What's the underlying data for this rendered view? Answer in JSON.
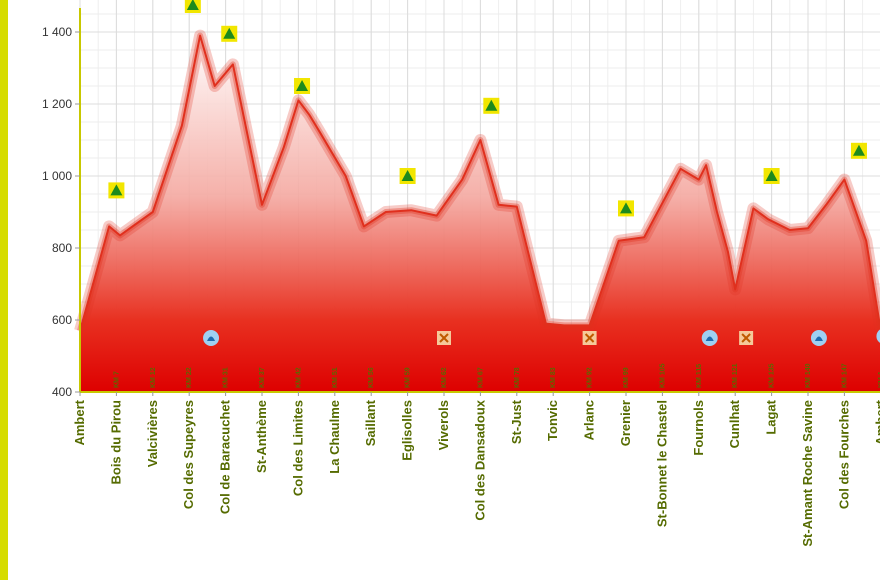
{
  "colors": {
    "accent_stripe": "#d6dc00",
    "axis": "#c8c800",
    "line": "#e0301e",
    "fill_top": "#ffffff",
    "fill_bottom": "#e00000",
    "category_label": "#556b00",
    "summit_icon_bg": "#f2e600",
    "summit_icon": "#1d8a1d",
    "water_icon_bg": "#9fd0f2",
    "water_icon": "#1e6bb0",
    "cross_icon_bg": "#f5c99a",
    "cross_icon": "#c05a00"
  },
  "chart_data": {
    "type": "area",
    "title": "",
    "xlabel": "",
    "ylabel": "",
    "ylim": [
      400,
      1500
    ],
    "yticks": [
      400,
      600,
      800,
      1000,
      1200,
      1400
    ],
    "ytick_labels": [
      "400",
      "600",
      "800",
      "1 000",
      "1 200",
      "1 400"
    ],
    "grid": true,
    "categories": [
      "Ambert",
      "Bois du Pirou",
      "Valcivières",
      "Col des Supeyres",
      "Col de Baracuchet",
      "St-Anthème",
      "Col des Limites",
      "La Chaulme",
      "Saillant",
      "Eglisolles",
      "Viverols",
      "Col des Dansadoux",
      "St-Just",
      "Tonvic",
      "Arlanc",
      "Grenier",
      "St-Bonnet le Chastel",
      "Fournols",
      "Cunlhat",
      "Lagat",
      "St-Amant Roche Savine",
      "Col des Fourches",
      "Ambert"
    ],
    "km_labels": [
      "",
      "KM 7",
      "KM 12",
      "KM 22",
      "KM 31",
      "KM 37",
      "KM 42",
      "KM 51",
      "KM 56",
      "KM 59",
      "KM 62",
      "KM 67",
      "KM 78",
      "KM 83",
      "KM 92",
      "KM 99",
      "KM 105",
      "KM 115",
      "KM 121",
      "KM 135",
      "KM 140",
      "KM 147",
      "KM 1"
    ],
    "profile": {
      "x": [
        0,
        0.8,
        1.1,
        2.0,
        2.8,
        3.3,
        3.7,
        4.2,
        5.0,
        5.6,
        6.0,
        6.3,
        6.6,
        7.3,
        7.8,
        8.4,
        9.1,
        9.8,
        10.5,
        11.0,
        11.5,
        12.0,
        12.8,
        13.3,
        14.0,
        14.8,
        15.5,
        16.5,
        17.0,
        17.2,
        17.5,
        17.8,
        18.0,
        18.5,
        18.9,
        19.5,
        20.0,
        20.5,
        21.0,
        21.6,
        22.0
      ],
      "elevation": [
        570,
        860,
        835,
        900,
        1140,
        1390,
        1250,
        1310,
        920,
        1080,
        1210,
        1170,
        1120,
        1000,
        860,
        900,
        905,
        890,
        990,
        1100,
        920,
        915,
        590,
        585,
        585,
        820,
        830,
        1020,
        990,
        1030,
        900,
        790,
        685,
        910,
        880,
        850,
        855,
        920,
        990,
        820,
        570
      ]
    },
    "annotations": [
      {
        "type": "summit",
        "x": 1.0,
        "elevation": 960
      },
      {
        "type": "summit",
        "x": 3.1,
        "elevation": 1475
      },
      {
        "type": "summit",
        "x": 4.1,
        "elevation": 1395
      },
      {
        "type": "summit",
        "x": 6.1,
        "elevation": 1250
      },
      {
        "type": "summit",
        "x": 9.0,
        "elevation": 1000
      },
      {
        "type": "summit",
        "x": 11.3,
        "elevation": 1195
      },
      {
        "type": "summit",
        "x": 15.0,
        "elevation": 910
      },
      {
        "type": "summit",
        "x": 19.0,
        "elevation": 1000
      },
      {
        "type": "summit",
        "x": 21.4,
        "elevation": 1070
      },
      {
        "type": "water",
        "x": 3.6,
        "elevation": 550
      },
      {
        "type": "water",
        "x": 17.3,
        "elevation": 550
      },
      {
        "type": "water",
        "x": 20.3,
        "elevation": 550
      },
      {
        "type": "water",
        "x": 22.1,
        "elevation": 555
      },
      {
        "type": "cross",
        "x": 10.0,
        "elevation": 550
      },
      {
        "type": "cross",
        "x": 14.0,
        "elevation": 550
      },
      {
        "type": "cross",
        "x": 18.3,
        "elevation": 550
      }
    ]
  }
}
